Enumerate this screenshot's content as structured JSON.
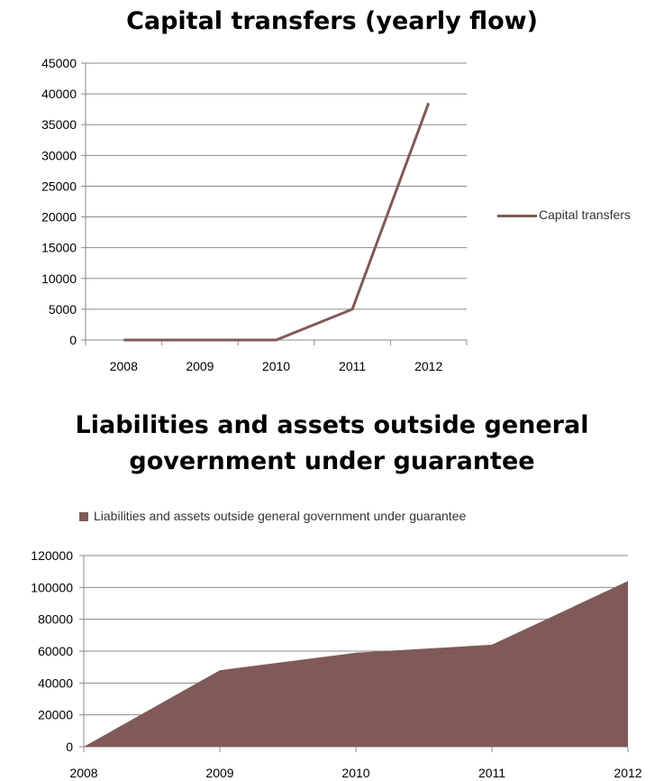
{
  "chart_data": [
    {
      "type": "line",
      "title": "Capital transfers (yearly flow)",
      "categories": [
        "2008",
        "2009",
        "2010",
        "2011",
        "2012"
      ],
      "series": [
        {
          "name": "Capital transfers",
          "values": [
            0,
            0,
            0,
            5000,
            38500
          ]
        }
      ],
      "ylim": [
        0,
        45000
      ],
      "yticks": [
        "0",
        "5000",
        "10000",
        "15000",
        "20000",
        "25000",
        "30000",
        "35000",
        "40000",
        "45000"
      ],
      "grid": true,
      "legend_position": "right",
      "color": "#7f5a58"
    },
    {
      "type": "area",
      "title": "Liabilities and assets outside general government under guarantee",
      "categories": [
        "2008",
        "2009",
        "2010",
        "2011",
        "2012"
      ],
      "series": [
        {
          "name": "Liabilities and assets outside general government under guarantee",
          "values": [
            0,
            48000,
            59000,
            64000,
            104000
          ]
        }
      ],
      "ylim": [
        0,
        120000
      ],
      "yticks": [
        "0",
        "20000",
        "40000",
        "60000",
        "80000",
        "100000",
        "120000"
      ],
      "grid": true,
      "legend_position": "top",
      "color": "#7f5a58"
    }
  ]
}
